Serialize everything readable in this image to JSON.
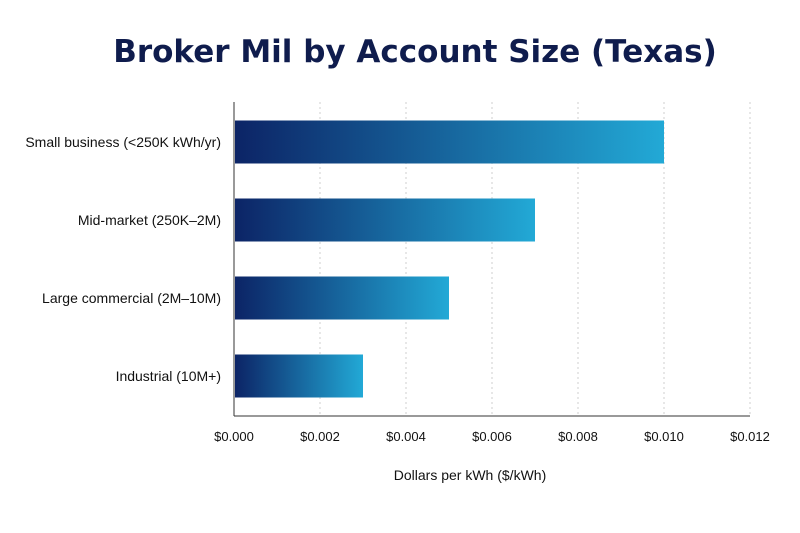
{
  "chart_data": {
    "type": "bar",
    "orientation": "horizontal",
    "title": "Broker Mil by Account Size (Texas)",
    "xlabel": "Dollars per kWh ($/kWh)",
    "ylabel": "",
    "categories": [
      "Small business (<250K kWh/yr)",
      "Mid-market (250K–2M)",
      "Large commercial (2M–10M)",
      "Industrial (10M+)"
    ],
    "values": [
      0.01,
      0.007,
      0.005,
      0.003
    ],
    "xlim": [
      0,
      0.012
    ],
    "xticks": [
      0,
      0.002,
      0.004,
      0.006,
      0.008,
      0.01,
      0.012
    ],
    "xtick_labels": [
      "$0.000",
      "$0.002",
      "$0.004",
      "$0.006",
      "$0.008",
      "$0.010",
      "$0.012"
    ],
    "grid": "x-dotted",
    "legend": "none",
    "colors": {
      "bar_start": "#0c2466",
      "bar_end": "#22a9d6",
      "title": "#0f1c4d"
    }
  }
}
